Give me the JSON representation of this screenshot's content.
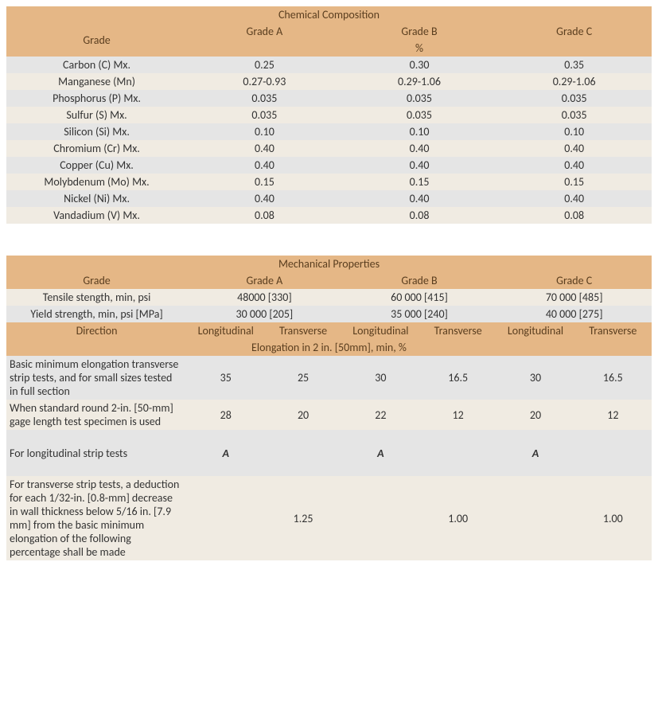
{
  "chem": {
    "title": "Chemical Composition",
    "gradeLabel": "Grade",
    "grades": [
      "Grade A",
      "Grade B",
      "Grade C"
    ],
    "unit": "%",
    "rows": [
      {
        "label": "Carbon (C) Mx.",
        "vals": [
          "0.25",
          "0.30",
          "0.35"
        ]
      },
      {
        "label": "Manganese (Mn)",
        "vals": [
          "0.27-0.93",
          "0.29-1.06",
          "0.29-1.06"
        ]
      },
      {
        "label": "Phosphorus (P) Mx.",
        "vals": [
          "0.035",
          "0.035",
          "0.035"
        ]
      },
      {
        "label": "Sulfur (S) Mx.",
        "vals": [
          "0.035",
          "0.035",
          "0.035"
        ]
      },
      {
        "label": "Silicon (Si) Mx.",
        "vals": [
          "0.10",
          "0.10",
          "0.10"
        ]
      },
      {
        "label": "Chromium (Cr) Mx.",
        "vals": [
          "0.40",
          "0.40",
          "0.40"
        ]
      },
      {
        "label": "Copper (Cu) Mx.",
        "vals": [
          "0.40",
          "0.40",
          "0.40"
        ]
      },
      {
        "label": "Molybdenum (Mo) Mx.",
        "vals": [
          "0.15",
          "0.15",
          "0.15"
        ]
      },
      {
        "label": "Nickel (Ni) Mx.",
        "vals": [
          "0.40",
          "0.40",
          "0.40"
        ]
      },
      {
        "label": "Vandadium (V) Mx.",
        "vals": [
          "0.08",
          "0.08",
          "0.08"
        ]
      }
    ]
  },
  "mech": {
    "title": "Mechanical Properties",
    "gradeLabel": "Grade",
    "grades": [
      "Grade  A",
      "Grade B",
      "Grade C"
    ],
    "tensile": {
      "label": "Tensile stength, min, psi",
      "vals": [
        "48000 [330]",
        "60 000 [415]",
        "70 000 [485]"
      ]
    },
    "yield": {
      "label": "Yield strength, min, psi [MPa]",
      "vals": [
        "30 000 [205]",
        "35 000 [240]",
        "40 000 [275]"
      ]
    },
    "directionLabel": "Direction",
    "dirs": [
      "Longitudinal",
      "Transverse",
      "Longitudinal",
      "Transverse",
      "Longitudinal",
      "Transverse"
    ],
    "elongTitle": "Elongation in 2 in. [50mm], min, %",
    "rows": [
      {
        "label": "Basic minimum elongation transverse strip tests, and for small sizes tested in full section",
        "vals": [
          "35",
          "25",
          "30",
          "16.5",
          "30",
          "16.5"
        ],
        "italic": false
      },
      {
        "label": "When standard round 2-in. [50-mm] gage length test specimen is used",
        "vals": [
          "28",
          "20",
          "22",
          "12",
          "20",
          "12"
        ],
        "italic": false
      },
      {
        "label": "For longitudinal strip tests",
        "vals": [
          "A",
          "",
          "A",
          "",
          "A",
          ""
        ],
        "italic": true
      },
      {
        "label": "For transverse strip tests, a deduction for each 1/32-in. [0.8-mm] decrease in wall thickness below 5/16 in. [7.9 mm] from the basic minimum elongation of the following percentage shall be made",
        "vals": [
          "",
          "1.25",
          "",
          "1.00",
          "",
          "1.00"
        ],
        "italic": false
      }
    ]
  },
  "colors": {
    "header": "#e5b786",
    "headerText": "#5a3e1f",
    "even": "#e5e5e5",
    "odd": "#f0ebe2"
  }
}
